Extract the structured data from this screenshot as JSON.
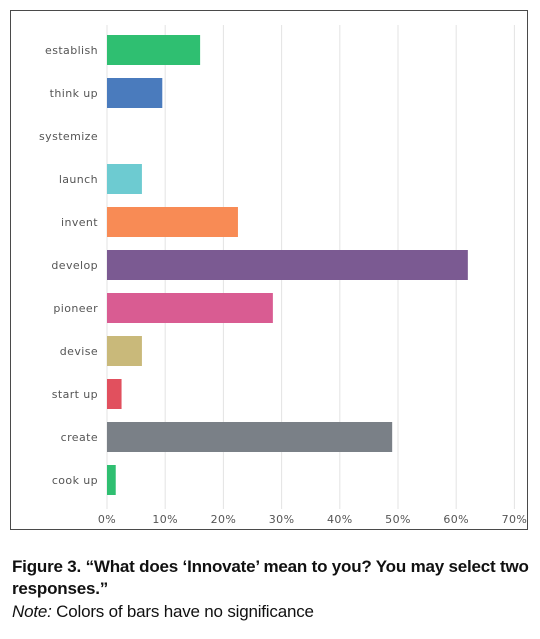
{
  "chart_data": {
    "type": "bar",
    "orientation": "horizontal",
    "categories": [
      "establish",
      "think up",
      "systemize",
      "launch",
      "invent",
      "develop",
      "pioneer",
      "devise",
      "start up",
      "create",
      "cook up"
    ],
    "values": [
      16,
      9.5,
      0,
      6,
      22.5,
      62,
      28.5,
      6,
      2.5,
      49,
      1.5
    ],
    "colors": [
      "#2fbf71",
      "#4a7bbd",
      "#cccccc",
      "#6dcbd1",
      "#f88b55",
      "#7b5a92",
      "#d95c92",
      "#c9b97a",
      "#e1505e",
      "#7a8087",
      "#2fbf71"
    ],
    "x_ticks": [
      "0%",
      "10%",
      "20%",
      "30%",
      "40%",
      "50%",
      "60%",
      "70%"
    ],
    "xlim": [
      0,
      70
    ],
    "grid": true
  },
  "caption": {
    "title": "Figure 3. “What does ‘Innovate’ mean to you? You may select two responses.”",
    "note_label": "Note:",
    "note_text": " Colors of bars have no significance"
  }
}
